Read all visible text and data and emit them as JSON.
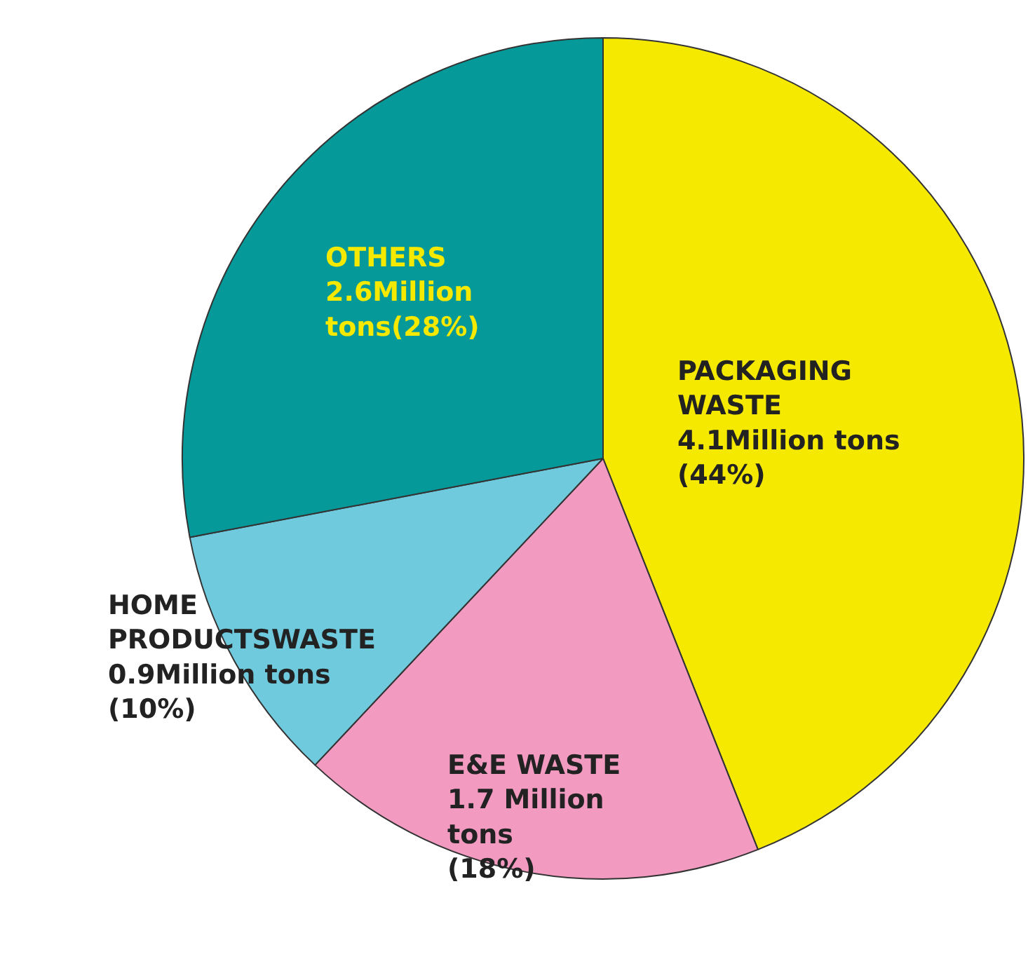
{
  "chart_data": {
    "type": "pie",
    "categories": [
      "PACKAGING\nWASTE",
      "E&E WASTE",
      "HOME\nPRODUCTSWASTE",
      "OTHERS"
    ],
    "values": [
      44,
      18,
      10,
      28
    ],
    "colors": [
      "#f5e900",
      "#f29ac0",
      "#6ecadc",
      "#059999"
    ],
    "value_labels": [
      "4.1Million tons\n(44%)",
      "1.7 Million\ntons\n(18%)",
      "0.9Million tons\n(10%)",
      "2.6Million\ntons(28%)"
    ],
    "legend": false
  }
}
